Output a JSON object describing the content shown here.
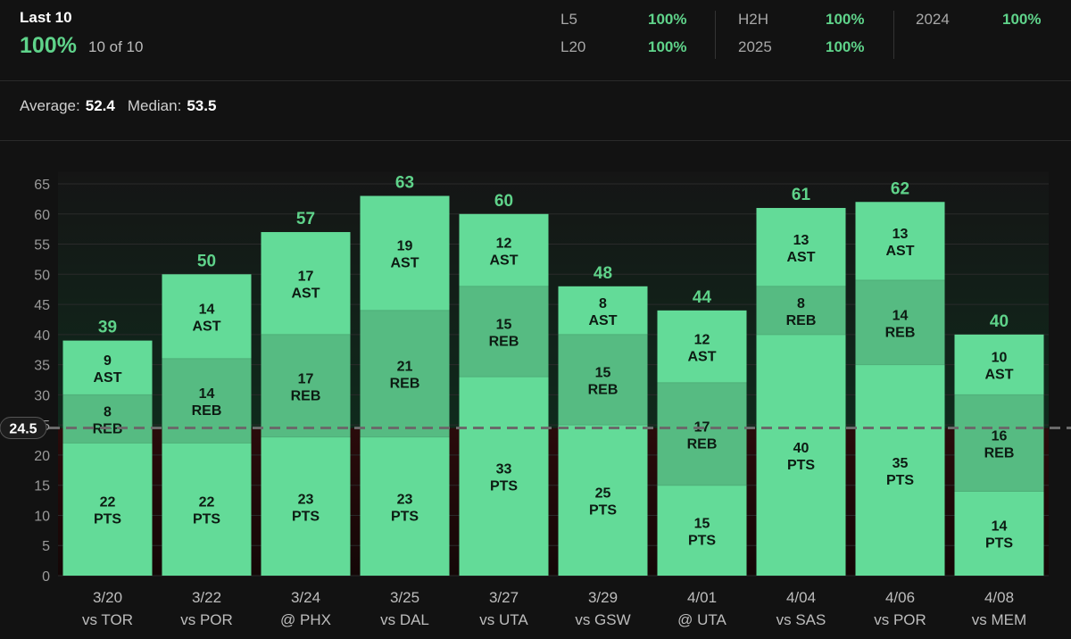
{
  "header": {
    "title": "Last 10",
    "hit_rate": "100%",
    "hit_count": "10 of 10",
    "stats": [
      {
        "label": "L5",
        "value": "100%"
      },
      {
        "label": "L20",
        "value": "100%"
      },
      {
        "label": "H2H",
        "value": "100%"
      },
      {
        "label": "2025",
        "value": "100%"
      },
      {
        "label": "2024",
        "value": "100%"
      }
    ],
    "average_label": "Average:",
    "average_value": "52.4",
    "median_label": "Median:",
    "median_value": "53.5"
  },
  "colors": {
    "pts": "#63db98",
    "reb": "#56bb82",
    "ast": "#63db98",
    "total_label": "#5fd38a",
    "line": "#6a6a6a"
  },
  "chart_data": {
    "type": "bar",
    "stacked": true,
    "categories": [
      "3/20 vs TOR",
      "3/22 vs POR",
      "3/24 @ PHX",
      "3/25 vs DAL",
      "3/27 vs UTA",
      "3/29 vs GSW",
      "4/01 @ UTA",
      "4/04 vs SAS",
      "4/06 vs POR",
      "4/08 vs MEM"
    ],
    "category_dates": [
      "3/20",
      "3/22",
      "3/24",
      "3/25",
      "3/27",
      "3/29",
      "4/01",
      "4/04",
      "4/06",
      "4/08"
    ],
    "category_opponents": [
      "vs TOR",
      "vs POR",
      "@ PHX",
      "vs DAL",
      "vs UTA",
      "vs GSW",
      "@ UTA",
      "vs SAS",
      "vs POR",
      "vs MEM"
    ],
    "series": [
      {
        "name": "PTS",
        "values": [
          22,
          22,
          23,
          23,
          33,
          25,
          15,
          40,
          35,
          14
        ]
      },
      {
        "name": "REB",
        "values": [
          8,
          14,
          17,
          21,
          15,
          15,
          17,
          8,
          14,
          16
        ]
      },
      {
        "name": "AST",
        "values": [
          9,
          14,
          17,
          19,
          12,
          8,
          12,
          13,
          13,
          10
        ]
      }
    ],
    "totals": [
      39,
      50,
      57,
      63,
      60,
      48,
      44,
      61,
      62,
      40
    ],
    "threshold": 24.5,
    "threshold_label": "24.5",
    "ylim": [
      0,
      67
    ],
    "yticks": [
      0,
      5,
      10,
      15,
      20,
      25,
      30,
      35,
      40,
      45,
      50,
      55,
      60,
      65
    ],
    "grid": true
  }
}
